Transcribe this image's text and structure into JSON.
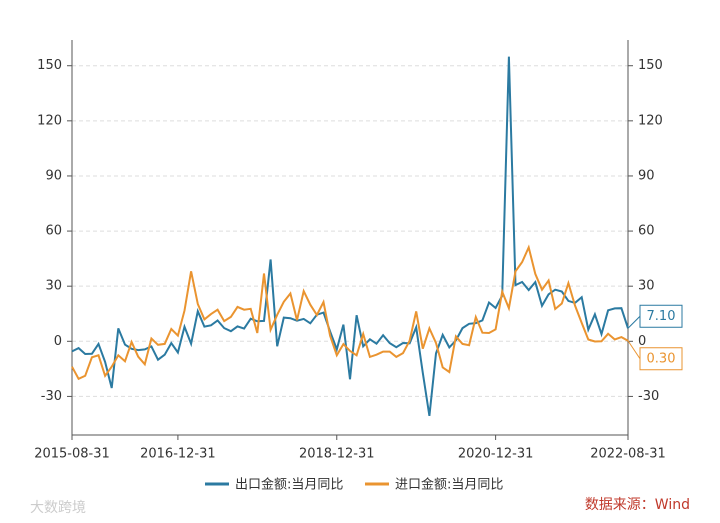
{
  "chart_data": {
    "type": "line",
    "x": [
      "2015-08-31",
      "2015-09-30",
      "2015-10-31",
      "2015-11-30",
      "2015-12-31",
      "2016-01-31",
      "2016-02-29",
      "2016-03-31",
      "2016-04-30",
      "2016-05-31",
      "2016-06-30",
      "2016-07-31",
      "2016-08-31",
      "2016-09-30",
      "2016-10-31",
      "2016-11-30",
      "2016-12-31",
      "2017-01-31",
      "2017-02-28",
      "2017-03-31",
      "2017-04-30",
      "2017-05-31",
      "2017-06-30",
      "2017-07-31",
      "2017-08-31",
      "2017-09-30",
      "2017-10-31",
      "2017-11-30",
      "2017-12-31",
      "2018-01-31",
      "2018-02-28",
      "2018-03-31",
      "2018-04-30",
      "2018-05-31",
      "2018-06-30",
      "2018-07-31",
      "2018-08-31",
      "2018-09-30",
      "2018-10-31",
      "2018-11-30",
      "2018-12-31",
      "2019-01-31",
      "2019-02-28",
      "2019-03-31",
      "2019-04-30",
      "2019-05-31",
      "2019-06-30",
      "2019-07-31",
      "2019-08-31",
      "2019-09-30",
      "2019-10-31",
      "2019-11-30",
      "2019-12-31",
      "2020-01-31",
      "2020-02-29",
      "2020-03-31",
      "2020-04-30",
      "2020-05-31",
      "2020-06-30",
      "2020-07-31",
      "2020-08-31",
      "2020-09-30",
      "2020-10-31",
      "2020-11-30",
      "2020-12-31",
      "2021-01-31",
      "2021-02-28",
      "2021-03-31",
      "2021-04-30",
      "2021-05-31",
      "2021-06-30",
      "2021-07-31",
      "2021-08-31",
      "2021-09-30",
      "2021-10-31",
      "2021-11-30",
      "2021-12-31",
      "2022-01-31",
      "2022-02-28",
      "2022-03-31",
      "2022-04-30",
      "2022-05-31",
      "2022-06-30",
      "2022-07-31",
      "2022-08-31"
    ],
    "series": [
      {
        "name": "出口金额:当月同比",
        "color": "#2b7aa1",
        "end_label": "7.10",
        "values": [
          -5.5,
          -3.7,
          -6.9,
          -6.8,
          -1.4,
          -11.2,
          -25.4,
          7,
          -1.8,
          -4.1,
          -4.8,
          -4.4,
          -2.8,
          -10,
          -7.3,
          -1,
          -6.1,
          7.9,
          -1.3,
          16.4,
          8,
          8.7,
          11.3,
          7.2,
          5.5,
          8.1,
          6.9,
          12.3,
          10.9,
          11.1,
          44.5,
          -2.7,
          12.9,
          12.6,
          11.2,
          12.2,
          9.8,
          14.5,
          15.6,
          5.4,
          -4.4,
          9.1,
          -20.7,
          14.2,
          -2.7,
          1.1,
          -1.3,
          3.3,
          -1,
          -3.2,
          -0.9,
          -1.1,
          7.6,
          -17.2,
          -40.6,
          -6.6,
          3.5,
          -3.3,
          0.5,
          7.2,
          9.5,
          9.9,
          11.4,
          21.1,
          18.1,
          24.9,
          154.9,
          30.6,
          32.3,
          27.9,
          32.2,
          19.3,
          25.6,
          28.1,
          27.1,
          22,
          20.9,
          24,
          6.3,
          14.7,
          3.9,
          16.9,
          17.9,
          18,
          7.1
        ]
      },
      {
        "name": "进口金额:当月同比",
        "color": "#ea9430",
        "end_label": "0.30",
        "values": [
          -13.8,
          -20.4,
          -18.8,
          -8.7,
          -7.6,
          -18.8,
          -13.8,
          -7.6,
          -10.9,
          -0.4,
          -8.4,
          -12.5,
          1.5,
          -1.9,
          -1.4,
          6.7,
          3.1,
          16.7,
          38.1,
          20.3,
          11.9,
          14.8,
          17.2,
          11,
          13.3,
          18.7,
          17.2,
          17.7,
          4.5,
          36.9,
          6.3,
          14.4,
          21.5,
          26,
          11.5,
          27.3,
          19.9,
          14.3,
          21.4,
          3,
          -7.6,
          -1.5,
          -5.2,
          -7.6,
          4,
          -8.5,
          -7.3,
          -5.6,
          -5.6,
          -8.5,
          -6.4,
          0.3,
          16.3,
          -4,
          7,
          -0.9,
          -14.2,
          -16.7,
          2.7,
          -1.4,
          -2.1,
          13.2,
          4.7,
          4.5,
          6.5,
          27,
          18,
          38.1,
          43.1,
          51.1,
          36.7,
          28.1,
          33.1,
          17.6,
          20.6,
          31.7,
          19.5,
          10,
          1,
          -0.1,
          0,
          4.1,
          1,
          2.3,
          0.3
        ]
      }
    ],
    "ylim": [
      -51,
      164
    ],
    "yticks": [
      -30,
      0,
      30,
      60,
      90,
      120,
      150
    ],
    "y2lim": [
      -51,
      164
    ],
    "y2ticks": [
      -30,
      0,
      30,
      60,
      90,
      120,
      150
    ],
    "xticks": [
      "2015-08-31",
      "2016-12-31",
      "2018-12-31",
      "2020-12-31",
      "2022-08-31"
    ],
    "grid": true,
    "legend": "bottom",
    "source": "数据来源：Wind",
    "watermark": "大数跨境"
  }
}
